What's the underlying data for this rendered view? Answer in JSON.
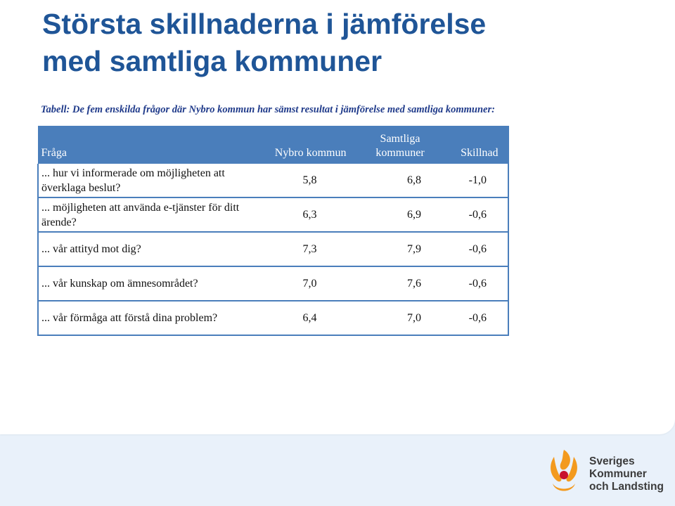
{
  "slide": {
    "title_line1": "Största skillnaderna i jämförelse",
    "title_line2": "med samtliga kommuner",
    "caption": "Tabell: De fem enskilda frågor där Nybro kommun har sämst resultat i jämförelse med samtliga kommuner:"
  },
  "table": {
    "headers": {
      "question": "Fråga",
      "nybro": "Nybro kommun",
      "all_line1": "Samtliga",
      "all_line2": "kommuner",
      "diff": "Skillnad"
    },
    "rows": [
      {
        "question": "... hur vi informerade om möjligheten att överklaga beslut?",
        "nybro": "5,8",
        "all": "6,8",
        "diff": "-1,0"
      },
      {
        "question": "... möjligheten att använda e-tjänster för ditt ärende?",
        "nybro": "6,3",
        "all": "6,9",
        "diff": "-0,6"
      },
      {
        "question": "... vår attityd mot dig?",
        "nybro": "7,3",
        "all": "7,9",
        "diff": "-0,6"
      },
      {
        "question": "... vår kunskap om ämnesområdet?",
        "nybro": "7,0",
        "all": "7,6",
        "diff": "-0,6"
      },
      {
        "question": "... vår förmåga att förstå dina problem?",
        "nybro": "6,4",
        "all": "7,0",
        "diff": "-0,6"
      }
    ]
  },
  "logo": {
    "line1": "Sveriges",
    "line2": "Kommuner",
    "line3": "och Landsting",
    "colors": {
      "orange": "#f39a1e",
      "red": "#c8102e",
      "text": "#3b3b3b"
    }
  },
  "colors": {
    "title": "#1f5597",
    "header_bg": "#4a7ebb",
    "background": "#e9f1fa"
  }
}
